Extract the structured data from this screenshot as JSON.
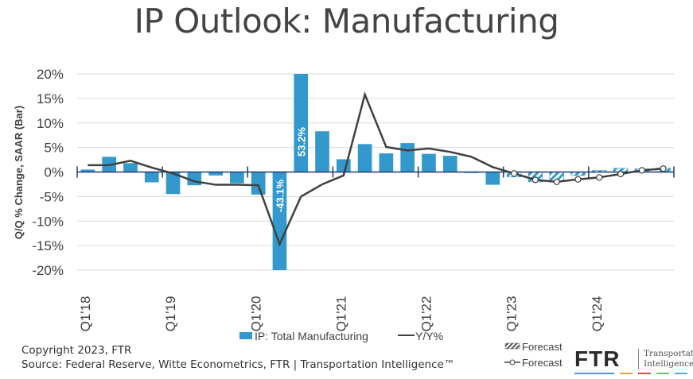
{
  "title": "IP Outlook: Manufacturing",
  "footer": {
    "copyright": "Copyright 2023, FTR",
    "source": "Source: Federal Reserve, Witte Econometrics, FTR | Transportation Intelligence™"
  },
  "logo": {
    "mark": "FTR",
    "line1": "Transportation",
    "line2": "Intelligence",
    "stripe_colors": [
      "#3b9fd8",
      "#f0a040",
      "#e04848",
      "#6cc070",
      "#3bb8e0"
    ]
  },
  "colors": {
    "bar": "#3399cc",
    "line": "#404040",
    "axis": "#1f3a78",
    "grid": "#d9d9d9",
    "text": "#404040"
  },
  "chart_data": {
    "type": "bar",
    "title": "IP Outlook: Manufacturing",
    "xlabel": "",
    "ylabel": "Q/Q % Change, SAAR (Bar)",
    "ylim": [
      -20,
      20
    ],
    "yticks": [
      20,
      15,
      10,
      5,
      0,
      -5,
      -10,
      -15,
      -20
    ],
    "ytick_labels": [
      "20%",
      "15%",
      "10%",
      "5%",
      "0%",
      "-5%",
      "-10%",
      "-15%",
      "-20%"
    ],
    "grid": true,
    "categories": [
      "Q1'18",
      "Q2'18",
      "Q3'18",
      "Q4'18",
      "Q1'19",
      "Q2'19",
      "Q3'19",
      "Q4'19",
      "Q1'20",
      "Q2'20",
      "Q3'20",
      "Q4'20",
      "Q1'21",
      "Q2'21",
      "Q3'21",
      "Q4'21",
      "Q1'22",
      "Q2'22",
      "Q3'22",
      "Q4'22",
      "Q1'23",
      "Q2'23",
      "Q3'23",
      "Q4'23",
      "Q1'24",
      "Q2'24",
      "Q3'24",
      "Q4'24"
    ],
    "xtick_labels": [
      "Q1'18",
      "Q1'19",
      "Q1'20",
      "Q1'21",
      "Q1'22",
      "Q1'23",
      "Q1'24"
    ],
    "forecast_start_index": 20,
    "series": [
      {
        "name": "IP: Total Manufacturing",
        "type": "bar",
        "values": [
          0.5,
          3.1,
          1.8,
          -2.1,
          -4.5,
          -2.7,
          -0.7,
          -2.3,
          -4.6,
          -43.1,
          53.2,
          8.3,
          2.6,
          5.7,
          3.8,
          5.9,
          3.7,
          3.3,
          -0.2,
          -2.6,
          -1.0,
          -2.0,
          -1.9,
          -0.7,
          0.3,
          0.75,
          0.65,
          0.8
        ],
        "data_labels": {
          "9": "-43.1%",
          "10": "53.2%"
        }
      },
      {
        "name": "Y/Y%",
        "type": "line",
        "values": [
          1.4,
          1.4,
          2.3,
          0.9,
          -0.3,
          -1.9,
          -2.6,
          -2.6,
          -2.7,
          -14.7,
          -5.0,
          -2.5,
          -0.7,
          15.8,
          5.1,
          4.4,
          4.8,
          4.1,
          3.1,
          1.0,
          -0.3,
          -1.6,
          -2.0,
          -1.5,
          -1.1,
          -0.4,
          0.35,
          0.7
        ]
      }
    ],
    "legend": {
      "placement": "bottom",
      "entries": [
        "IP: Total Manufacturing",
        "Y/Y%"
      ],
      "forecast_entries": [
        "Forecast",
        "Forecast"
      ]
    }
  }
}
